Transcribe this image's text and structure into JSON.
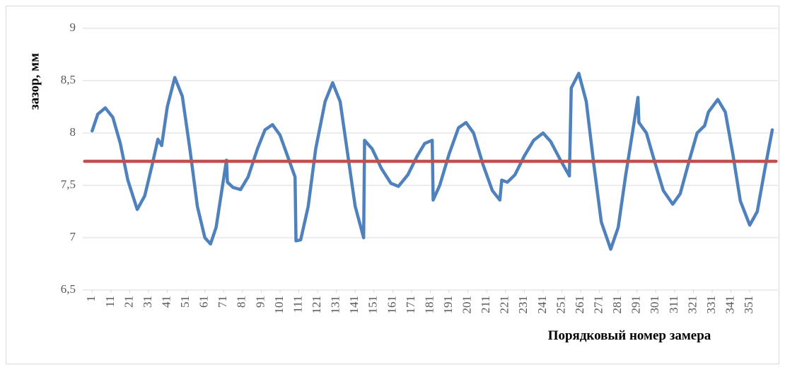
{
  "chart_data": {
    "type": "line",
    "y_label": "зазор, мм",
    "x_label": "Порядковый номер замера",
    "xlim": [
      -4,
      366
    ],
    "xticks": [
      1,
      11,
      21,
      31,
      41,
      51,
      61,
      71,
      81,
      91,
      101,
      111,
      121,
      131,
      141,
      151,
      161,
      171,
      181,
      191,
      201,
      211,
      221,
      231,
      241,
      251,
      261,
      271,
      281,
      291,
      301,
      311,
      321,
      331,
      341,
      351
    ],
    "ylim": [
      6.5,
      9
    ],
    "yticks": [
      {
        "value": 6.5,
        "label": "6,5"
      },
      7,
      {
        "value": 7.5,
        "label": "7,5"
      },
      8,
      {
        "value": 8.5,
        "label": "8,5"
      },
      9
    ],
    "grid": true,
    "series": [
      {
        "color": "#4f81bd",
        "x": [
          1,
          4,
          8,
          12,
          16,
          20,
          25,
          29,
          33,
          36,
          38,
          41,
          45,
          49,
          53,
          57,
          61,
          64,
          67,
          70,
          72.5,
          73,
          76,
          80,
          84,
          89,
          93,
          97,
          101,
          105,
          109,
          109.5,
          112,
          116,
          120,
          125,
          129,
          133,
          137,
          141,
          145.5,
          146,
          150,
          155,
          160,
          164,
          169,
          174,
          178,
          182,
          182.5,
          186,
          191,
          196,
          200,
          204,
          209,
          214,
          218,
          219,
          222,
          226,
          231,
          236,
          241,
          245,
          250,
          255,
          256,
          260,
          264,
          268,
          272,
          277,
          281,
          285,
          289,
          291.5,
          292,
          296,
          300,
          305,
          310,
          314,
          319,
          323,
          327,
          329,
          334,
          338,
          342,
          346,
          351,
          355,
          359,
          363
        ],
        "values": [
          8.02,
          8.18,
          8.24,
          8.15,
          7.9,
          7.55,
          7.27,
          7.4,
          7.7,
          7.94,
          7.88,
          8.25,
          8.53,
          8.35,
          7.85,
          7.3,
          7.0,
          6.94,
          7.1,
          7.45,
          7.74,
          7.53,
          7.48,
          7.46,
          7.58,
          7.85,
          8.03,
          8.08,
          7.98,
          7.78,
          7.58,
          6.97,
          6.98,
          7.3,
          7.85,
          8.3,
          8.48,
          8.3,
          7.8,
          7.3,
          7.0,
          7.93,
          7.85,
          7.66,
          7.52,
          7.49,
          7.6,
          7.78,
          7.9,
          7.93,
          7.36,
          7.5,
          7.8,
          8.05,
          8.1,
          8.0,
          7.7,
          7.45,
          7.36,
          7.55,
          7.53,
          7.6,
          7.78,
          7.93,
          8.0,
          7.92,
          7.75,
          7.59,
          8.43,
          8.57,
          8.3,
          7.7,
          7.15,
          6.89,
          7.1,
          7.6,
          8.05,
          8.34,
          8.1,
          8.0,
          7.75,
          7.45,
          7.32,
          7.42,
          7.75,
          8.0,
          8.07,
          8.2,
          8.32,
          8.2,
          7.8,
          7.35,
          7.12,
          7.25,
          7.65,
          8.03
        ]
      },
      {
        "color": "#c0504d",
        "x": [
          -3,
          365
        ],
        "values": [
          7.73,
          7.73
        ]
      }
    ]
  }
}
